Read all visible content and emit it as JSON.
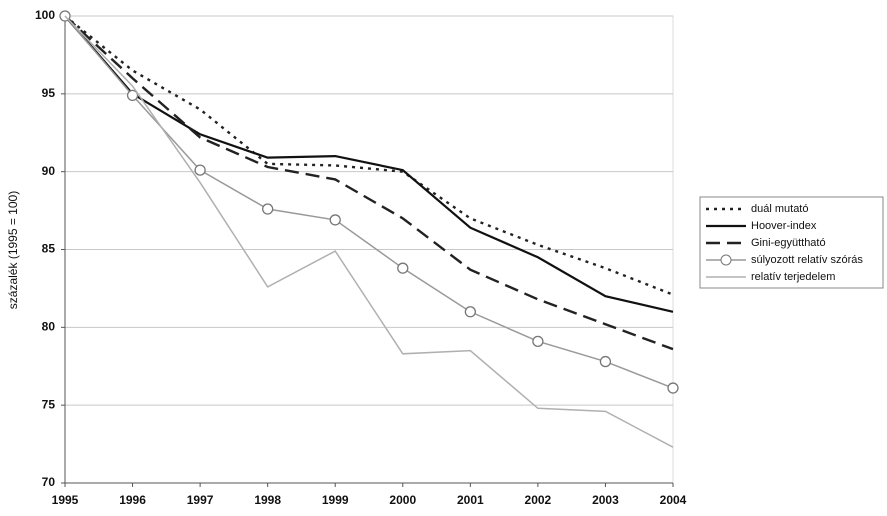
{
  "chart_data": {
    "type": "line",
    "y_label": "százalék (1995 = 100)",
    "categories": [
      "1995",
      "1996",
      "1997",
      "1998",
      "1999",
      "2000",
      "2001",
      "2002",
      "2003",
      "2004"
    ],
    "series": [
      {
        "name": "duál mutató",
        "color": "#222222",
        "style": "dotted",
        "values": [
          100,
          96.5,
          94,
          90.5,
          90.4,
          90,
          87,
          85.3,
          83.8,
          82.1
        ]
      },
      {
        "name": "Hoover-index",
        "color": "#111111",
        "style": "solid",
        "values": [
          100,
          95,
          92.4,
          90.9,
          91,
          90.1,
          86.4,
          84.5,
          82,
          81
        ]
      },
      {
        "name": "Gini-együttható",
        "color": "#222222",
        "style": "dashed",
        "values": [
          100,
          96,
          92.2,
          90.3,
          89.5,
          87,
          83.7,
          81.8,
          80.2,
          78.6
        ]
      },
      {
        "name": "súlyozott relatív szórás",
        "color": "#999999",
        "style": "solid",
        "marker": "circle",
        "values": [
          100,
          94.9,
          90.1,
          87.6,
          86.9,
          83.8,
          81,
          79.1,
          77.8,
          76.1
        ]
      },
      {
        "name": "relatív terjedelem",
        "color": "#b0b0b0",
        "style": "solid",
        "values": [
          100,
          95.5,
          89.3,
          82.6,
          84.9,
          78.3,
          78.5,
          74.8,
          74.6,
          72.3
        ]
      }
    ],
    "ylim": [
      70,
      100
    ],
    "yticks": [
      70,
      75,
      80,
      85,
      90,
      95,
      100
    ],
    "grid": true,
    "legend": "right"
  }
}
